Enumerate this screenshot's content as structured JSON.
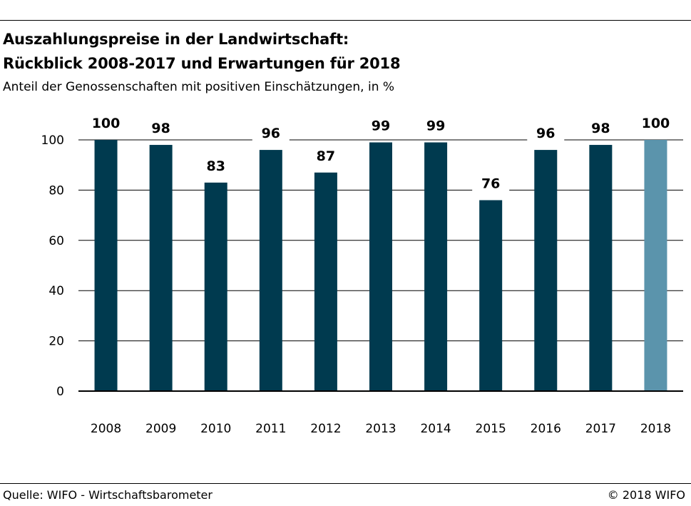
{
  "header": {
    "title": "Auszahlungspreise in der Landwirtschaft:\nRückblick 2008-2017 und Erwartungen für 2018",
    "subtitle": "Anteil der Genossenschaften mit positiven Einschätzungen, in %"
  },
  "footer": {
    "source": "Quelle: WIFO - Wirtschaftsbarometer",
    "copyright": "© 2018 WIFO"
  },
  "chart_data": {
    "type": "bar",
    "title": "Auszahlungspreise in der Landwirtschaft: Rückblick 2008-2017 und Erwartungen für 2018",
    "subtitle": "Anteil der Genossenschaften mit positiven Einschätzungen, in %",
    "categories": [
      "2008",
      "2009",
      "2010",
      "2011",
      "2012",
      "2013",
      "2014",
      "2015",
      "2016",
      "2017",
      "2018"
    ],
    "values": [
      100,
      98,
      83,
      96,
      87,
      99,
      99,
      76,
      96,
      98,
      100
    ],
    "ylim": [
      0,
      100
    ],
    "yticks": [
      0,
      20,
      40,
      60,
      80,
      100
    ],
    "grid": true,
    "colors": {
      "past": "#003a4f",
      "expectation": "#5b94ac",
      "grid": "#000000"
    },
    "highlight_category": "2018"
  }
}
